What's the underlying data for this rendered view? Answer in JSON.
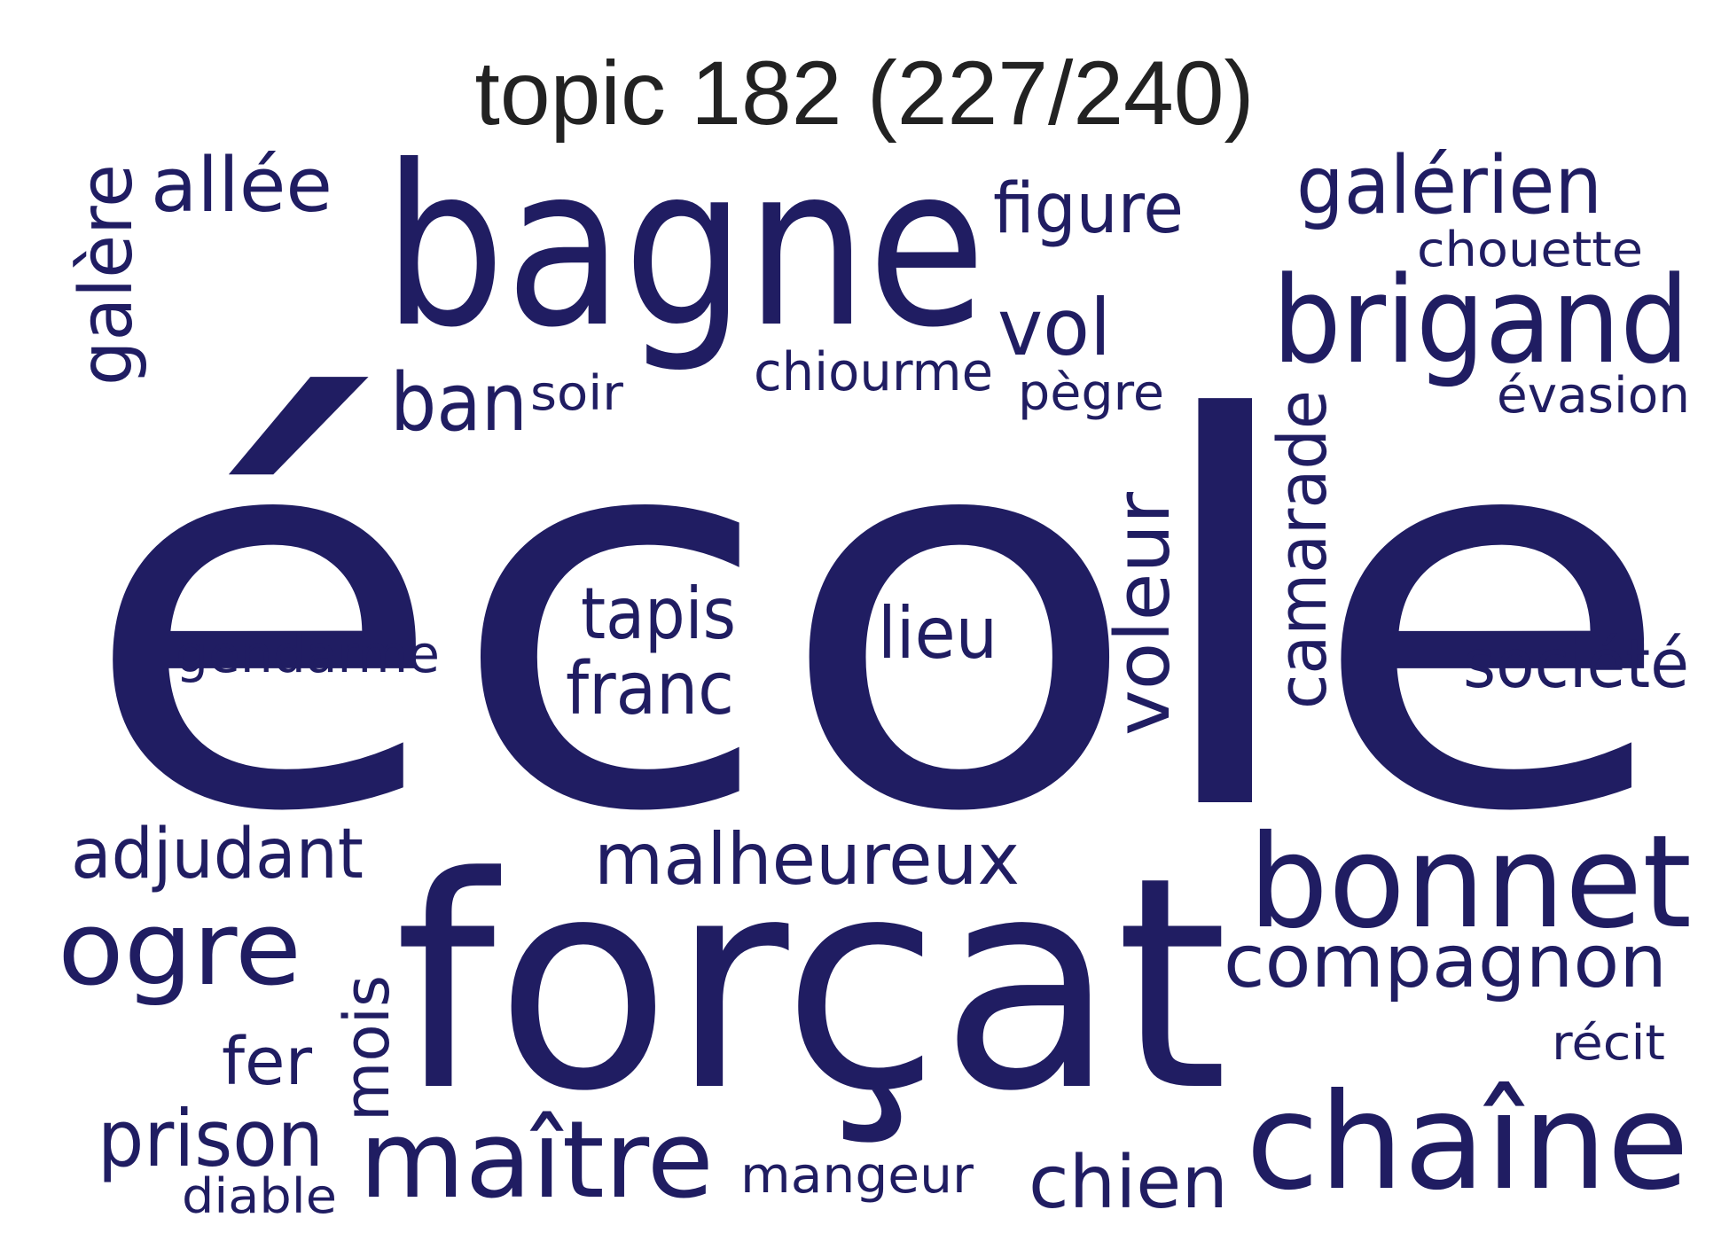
{
  "title": "topic 182 (227/240)",
  "word_color": "#201d62",
  "words": {
    "ecole": "école",
    "forcat": "forçat",
    "bagne": "bagne",
    "brigand": "brigand",
    "bonnet": "bonnet",
    "chaine": "chaîne",
    "maitre": "maître",
    "ogre": "ogre",
    "compagnon": "compagnon",
    "malheureux": "malheureux",
    "voleur": "voleur",
    "camarade": "camarade",
    "galere": "galère",
    "allee": "allée",
    "figure": "figure",
    "galerien": "galérien",
    "chouette": "chouette",
    "vol": "vol",
    "ban": "ban",
    "soir": "soir",
    "chiourme": "chiourme",
    "pegre": "pègre",
    "evasion": "évasion",
    "tapis": "tapis",
    "lieu": "lieu",
    "gendarme": "gendarme",
    "franc": "franc",
    "societe": "société",
    "adjudant": "adjudant",
    "mois": "mois",
    "fer": "fer",
    "prison": "prison",
    "diable": "diable",
    "mangeur": "mangeur",
    "chien": "chien",
    "recit": "récit"
  }
}
